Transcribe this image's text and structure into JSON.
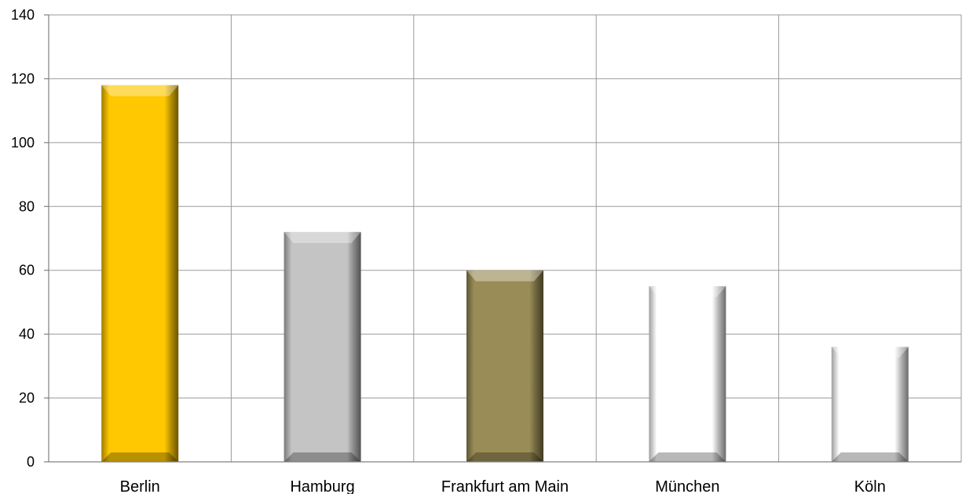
{
  "chart_data": {
    "type": "bar",
    "categories": [
      "Berlin",
      "Hamburg",
      "Frankfurt am Main",
      "München",
      "Köln"
    ],
    "values": [
      118,
      72,
      60,
      55,
      36
    ],
    "colors": [
      "#FFC800",
      "#C4C4C4",
      "#9A8C56",
      "#FFFFFF",
      "#FFFFFF"
    ],
    "ylim": [
      0,
      140
    ],
    "yticks": [
      0,
      20,
      40,
      60,
      80,
      100,
      120,
      140
    ],
    "grid": true,
    "legend": "none"
  }
}
